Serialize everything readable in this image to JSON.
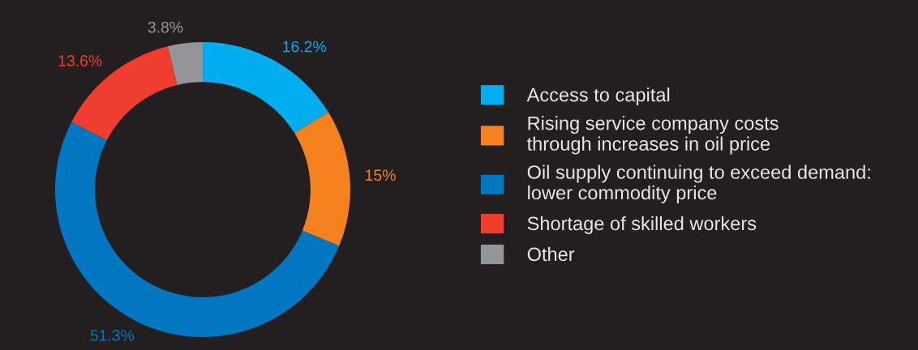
{
  "chart_data": {
    "type": "donut",
    "categories": [
      "Access to capital",
      "Rising service company costs\nthrough increases in oil price",
      "Oil supply continuing to exceed demand:\nlower commodity price",
      "Shortage of skilled workers",
      "Other"
    ],
    "values": [
      16.2,
      15,
      51.3,
      13.6,
      3.8
    ],
    "value_labels": [
      "16.2%",
      "15%",
      "51.3%",
      "13.6%",
      "3.8%"
    ],
    "colors": [
      "#00aeef",
      "#f5821f",
      "#0077c0",
      "#ef3e2d",
      "#939598"
    ],
    "legend": "right"
  }
}
